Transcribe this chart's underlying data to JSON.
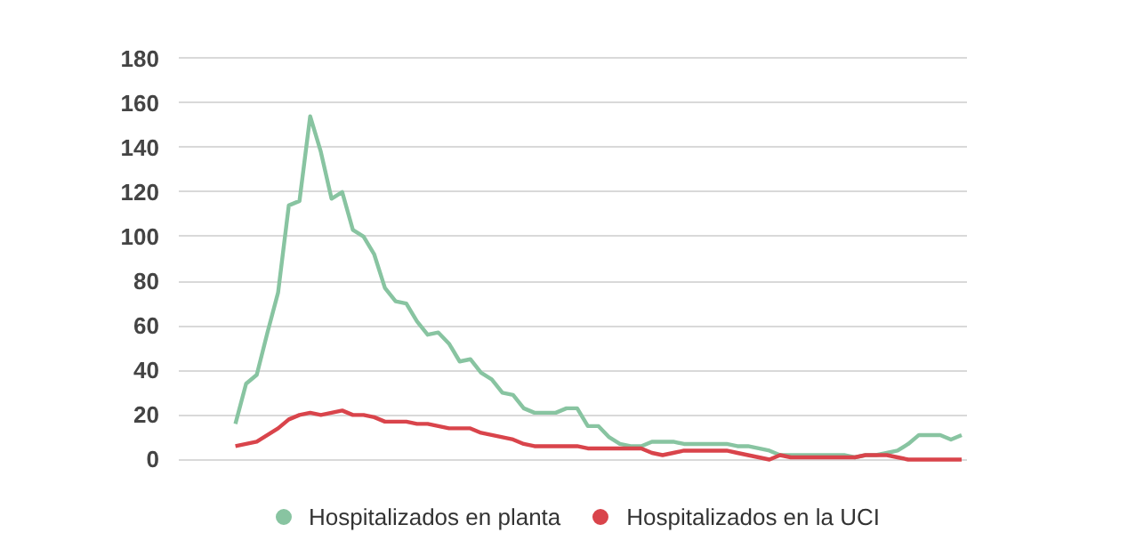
{
  "chart_data": {
    "type": "line",
    "categories": [
      null,
      null,
      null,
      null,
      null,
      null,
      null,
      null,
      null,
      null,
      null,
      null,
      null,
      null,
      null,
      null,
      null,
      null,
      null,
      null,
      null,
      null,
      null,
      null,
      null,
      null,
      null,
      null,
      null,
      null,
      null,
      null,
      null,
      null,
      null,
      null,
      null,
      null,
      null,
      null,
      null,
      null,
      null,
      null,
      null,
      null,
      null,
      null,
      null,
      null,
      null,
      null,
      null,
      null,
      null,
      null,
      null,
      null,
      null,
      null,
      null,
      null,
      null,
      null,
      null,
      null,
      null,
      null,
      null
    ],
    "series": [
      {
        "name": "Hospitalizados en planta",
        "color": "#88c4a1",
        "values": [
          16,
          34,
          38,
          57,
          75,
          114,
          116,
          154,
          138,
          117,
          120,
          103,
          100,
          92,
          77,
          71,
          70,
          62,
          56,
          57,
          52,
          44,
          45,
          39,
          36,
          30,
          29,
          23,
          21,
          21,
          21,
          23,
          23,
          15,
          15,
          10,
          7,
          6,
          6,
          8,
          8,
          8,
          7,
          7,
          7,
          7,
          7,
          6,
          6,
          5,
          4,
          2,
          2,
          2,
          2,
          2,
          2,
          2,
          1,
          2,
          2,
          3,
          4,
          7,
          11,
          11,
          11,
          9,
          11
        ]
      },
      {
        "name": "Hospitalizados en la UCI",
        "color": "#d9444b",
        "values": [
          6,
          7,
          8,
          11,
          14,
          18,
          20,
          21,
          20,
          21,
          22,
          20,
          20,
          19,
          17,
          17,
          17,
          16,
          16,
          15,
          14,
          14,
          14,
          12,
          11,
          10,
          9,
          7,
          6,
          6,
          6,
          6,
          6,
          5,
          5,
          5,
          5,
          5,
          5,
          3,
          2,
          3,
          4,
          4,
          4,
          4,
          4,
          3,
          2,
          1,
          0,
          2,
          1,
          1,
          1,
          1,
          1,
          1,
          1,
          2,
          2,
          2,
          1,
          0,
          0,
          0,
          0,
          0,
          0
        ]
      }
    ],
    "ylim": [
      0,
      180
    ],
    "yticks": [
      0,
      20,
      40,
      60,
      80,
      100,
      120,
      140,
      160,
      180
    ],
    "grid": "y",
    "legend": "bottom",
    "tick_labels": "y",
    "marker": "none",
    "line_style": "solid"
  }
}
